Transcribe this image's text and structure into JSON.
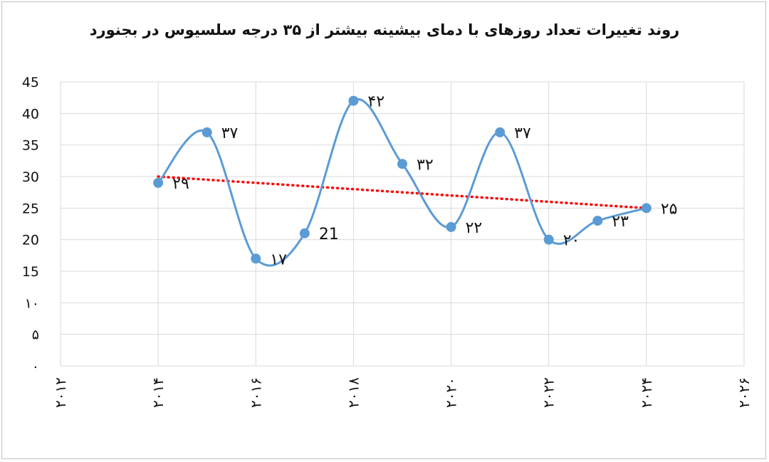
{
  "chart_data": {
    "type": "line",
    "title": "روند تغییرات تعداد روزهای با دمای بیشینه بیشتر از ۳۵ درجه سلسیوس در بجنورد",
    "xlabel": "",
    "ylabel": "",
    "xlim": [
      2012,
      2026
    ],
    "ylim": [
      0,
      45
    ],
    "grid": true,
    "legend": "none",
    "x_ticks": [
      2012,
      2014,
      2016,
      2018,
      2020,
      2022,
      2024,
      2026
    ],
    "x_tick_labels": [
      "۲۰۱۲",
      "۲۰۱۴",
      "۲۰۱۶",
      "۲۰۱۸",
      "۲۰۲۰",
      "۲۰۲۲",
      "۲۰۲۴",
      "۲۰۲۶"
    ],
    "y_ticks": [
      0,
      5,
      10,
      15,
      20,
      25,
      30,
      35,
      40,
      45
    ],
    "y_tick_labels": [
      "۰",
      "۵",
      "۱۰",
      "15",
      "20",
      "25",
      "30",
      "35",
      "40",
      "45"
    ],
    "x": [
      2014,
      2015,
      2016,
      2017,
      2018,
      2019,
      2020,
      2021,
      2022,
      2023,
      2024
    ],
    "series": [
      {
        "values": [
          29,
          37,
          17,
          21,
          42,
          32,
          22,
          37,
          20,
          23,
          25
        ],
        "labels": [
          "۲۹",
          "۳۷",
          "۱۷",
          "21",
          "۴۲",
          "۳۲",
          "۲۲",
          "۳۷",
          "۲۰",
          "۲۳",
          "۲۵"
        ],
        "color": "#5b9bd5",
        "smooth": true
      }
    ],
    "trendline": {
      "type": "linear",
      "from": [
        2014,
        30
      ],
      "to": [
        2024,
        25
      ],
      "color": "#ff0000",
      "style": "dotted"
    }
  }
}
